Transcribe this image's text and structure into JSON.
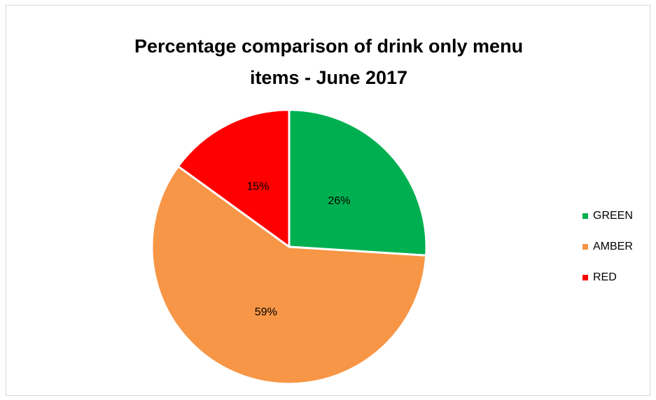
{
  "chart_data": {
    "type": "pie",
    "title": "Percentage comparison of drink only menu items - June 2017",
    "title_lines": [
      "Percentage comparison of drink only menu",
      "items - June 2017"
    ],
    "categories": [
      "GREEN",
      "AMBER",
      "RED"
    ],
    "values": [
      26,
      59,
      15
    ],
    "data_labels": [
      "26%",
      "59%",
      "15%"
    ],
    "colors": [
      "#00b050",
      "#f79646",
      "#ff0000"
    ],
    "legend_position": "right"
  }
}
